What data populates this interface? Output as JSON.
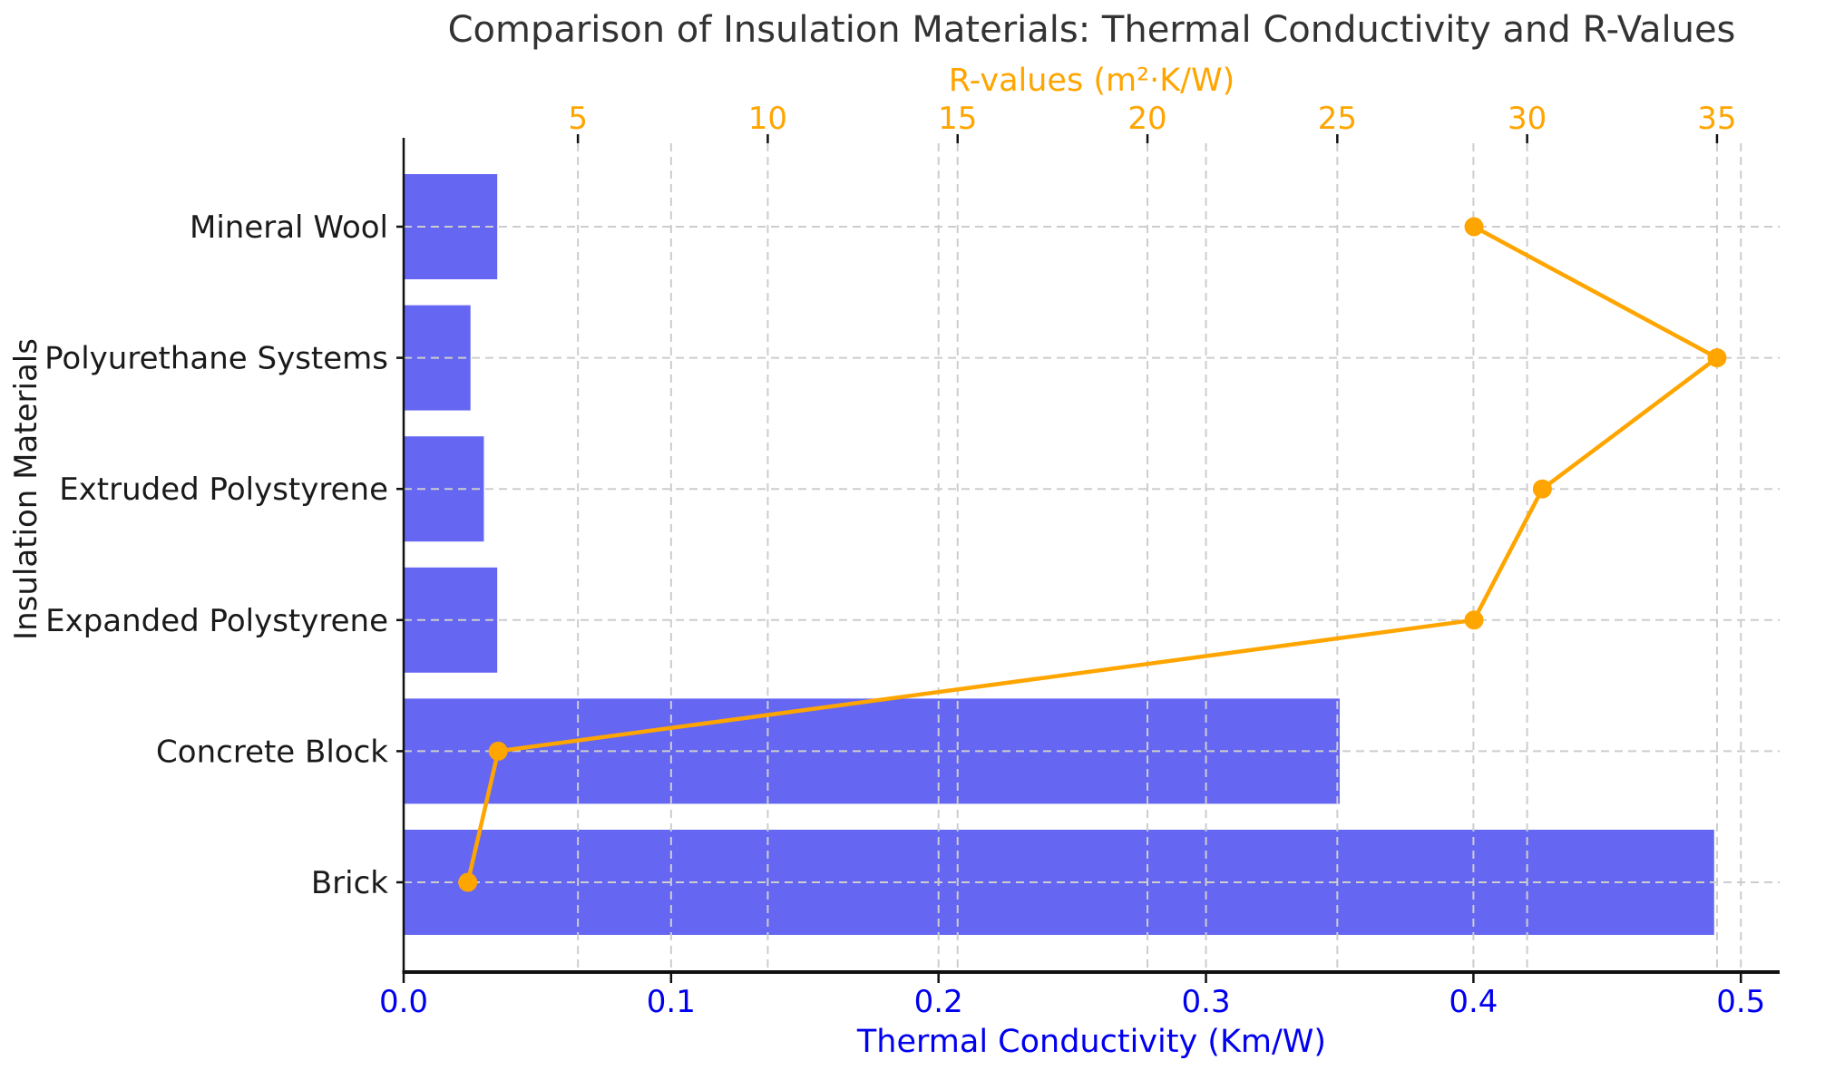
{
  "chart_data": {
    "type": "bar",
    "subtype": "horizontal-bar-with-line-overlay",
    "title": "Comparison of Insulation Materials: Thermal Conductivity and R-Values",
    "ylabel": "Insulation Materials",
    "categories": [
      "Mineral Wool",
      "Polyurethane Systems",
      "Extruded Polystyrene",
      "Expanded Polystyrene",
      "Concrete Block",
      "Brick"
    ],
    "series": [
      {
        "name": "Thermal Conductivity",
        "chart_type": "bar",
        "axis": "bottom",
        "color": "#6566f2",
        "values": [
          0.035,
          0.025,
          0.03,
          0.035,
          0.35,
          0.49
        ]
      },
      {
        "name": "R-values",
        "chart_type": "line",
        "axis": "top",
        "color": "#ffa500",
        "marker": "circle",
        "values": [
          28.6,
          35.0,
          30.4,
          28.6,
          2.9,
          2.1
        ]
      }
    ],
    "bottom_axis": {
      "label": "Thermal Conductivity (Km/W)",
      "color": "#0000ee",
      "range": [
        0,
        0.5145
      ],
      "ticks": [
        0,
        0.1,
        0.2,
        0.3,
        0.4,
        0.5
      ],
      "tick_labels": [
        "0.0",
        "0.1",
        "0.2",
        "0.3",
        "0.4",
        "0.5"
      ]
    },
    "top_axis": {
      "label": "R-values (m²·K/W)",
      "color": "#ffa500",
      "range": [
        0.41,
        36.65
      ],
      "ticks": [
        5,
        10,
        15,
        20,
        25,
        30,
        35
      ],
      "tick_labels": [
        "5",
        "10",
        "15",
        "20",
        "25",
        "30",
        "35"
      ]
    },
    "grid": {
      "visible": true,
      "color": "#cdcdcd",
      "dash": "9 6"
    },
    "legend": "none",
    "title_color": "#333333",
    "spine_color": "#111111",
    "background": "#ffffff"
  }
}
